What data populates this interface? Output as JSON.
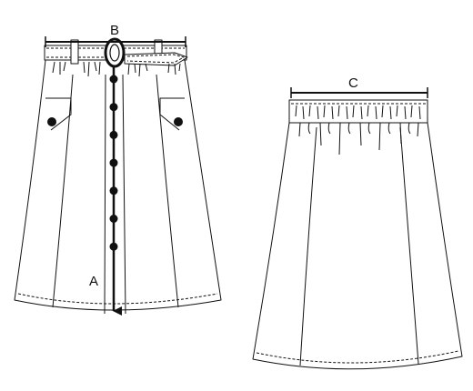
{
  "diagram": {
    "front_view": {
      "measure_length_label": "A",
      "measure_belt_label": "B",
      "button_count": 7
    },
    "back_view": {
      "measure_waist_label": "C"
    }
  },
  "colors": {
    "line": "#111111",
    "background": "#ffffff",
    "fill": "#ffffff"
  }
}
